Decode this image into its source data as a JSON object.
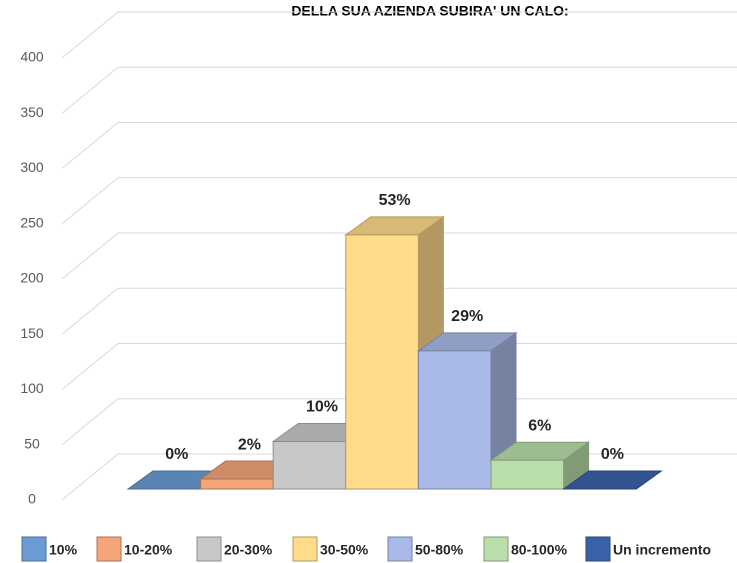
{
  "chart_data": {
    "type": "bar3d",
    "title": "DELLA SUA AZIENDA SUBIRA' UN CALO:",
    "series": [
      {
        "name": "10%",
        "color": "#6a9bd2",
        "values": [
          0
        ]
      },
      {
        "name": "10-20%",
        "color": "#f4a57a",
        "values": [
          9
        ]
      },
      {
        "name": "20-30%",
        "color": "#c8c8c8",
        "values": [
          43
        ]
      },
      {
        "name": "30-50%",
        "color": "#ffdb8a",
        "values": [
          230
        ]
      },
      {
        "name": "50-80%",
        "color": "#a9b9e8",
        "values": [
          125
        ]
      },
      {
        "name": "80-100%",
        "color": "#b9deaa",
        "values": [
          26
        ]
      },
      {
        "name": "Un incremento",
        "color": "#3a62a8",
        "values": [
          0
        ]
      }
    ],
    "percent_values": [
      0,
      2,
      10,
      53,
      29,
      6,
      0
    ],
    "value_labels": [
      "0%",
      "2%",
      "10%",
      "53%",
      "29%",
      "6%",
      "0%"
    ],
    "ylim": [
      0,
      400
    ],
    "yticks": [
      0,
      50,
      100,
      150,
      200,
      250,
      300,
      350,
      400
    ],
    "grid": true
  }
}
